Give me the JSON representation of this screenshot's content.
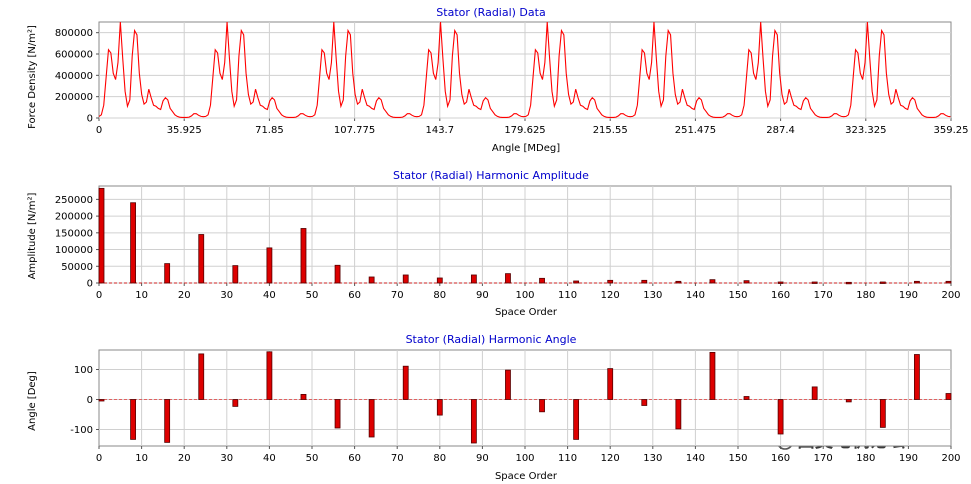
{
  "chart_data": [
    {
      "type": "line",
      "title": "Stator (Radial) Data",
      "xlabel": "Angle [MDeg]",
      "ylabel": "Force Density [N/m²]",
      "xlim": [
        0,
        359.25
      ],
      "ylim": [
        0,
        900000
      ],
      "xticks": [
        "0",
        "35.925",
        "71.85",
        "107.775",
        "143.7",
        "179.625",
        "215.55",
        "251.475",
        "287.4",
        "323.325",
        "359.25"
      ],
      "yticks": [
        "0",
        "200000",
        "400000",
        "600000",
        "800000"
      ],
      "grid": true,
      "color": "#ff0000",
      "period_deg": 45,
      "period_profile": {
        "angle_offset": [
          0,
          1,
          2,
          3,
          4,
          5,
          6,
          7,
          8,
          9,
          10,
          11,
          12,
          13,
          14,
          15,
          16,
          17,
          18,
          19,
          20,
          21,
          22,
          23,
          24,
          25,
          26,
          27,
          28,
          29,
          30,
          31,
          32,
          33,
          34,
          35,
          36,
          37,
          38,
          39,
          40,
          41,
          42,
          43,
          44,
          45
        ],
        "value": [
          15000,
          30000,
          120000,
          380000,
          640000,
          610000,
          420000,
          360000,
          520000,
          900000,
          560000,
          250000,
          110000,
          170000,
          580000,
          820000,
          780000,
          420000,
          220000,
          130000,
          150000,
          270000,
          190000,
          120000,
          110000,
          90000,
          80000,
          160000,
          190000,
          170000,
          90000,
          60000,
          30000,
          15000,
          8000,
          5000,
          5000,
          5000,
          8000,
          20000,
          40000,
          40000,
          25000,
          15000,
          12000,
          15000
        ]
      }
    },
    {
      "type": "bar",
      "title": "Stator (Radial) Harmonic Amplitude",
      "xlabel": "Space Order",
      "ylabel": "Amplitude [N/m²]",
      "xlim": [
        0,
        200
      ],
      "ylim": [
        0,
        290000
      ],
      "xticks": [
        "0",
        "10",
        "20",
        "30",
        "40",
        "50",
        "60",
        "70",
        "80",
        "90",
        "100",
        "110",
        "120",
        "130",
        "140",
        "150",
        "160",
        "170",
        "180",
        "190",
        "200"
      ],
      "yticks": [
        "0",
        "50000",
        "100000",
        "150000",
        "200000",
        "250000"
      ],
      "grid": true,
      "color": "#dd0000",
      "categories": [
        0,
        8,
        16,
        24,
        32,
        40,
        48,
        56,
        64,
        72,
        80,
        88,
        96,
        104,
        112,
        120,
        128,
        136,
        144,
        152,
        160,
        168,
        176,
        184,
        192,
        200
      ],
      "values": [
        283000,
        240000,
        58000,
        145000,
        52000,
        105000,
        163000,
        53000,
        18000,
        24000,
        15000,
        24000,
        28000,
        14000,
        6000,
        8000,
        8000,
        5000,
        10000,
        7000,
        3000,
        3000,
        2000,
        3000,
        5000,
        5000
      ]
    },
    {
      "type": "bar",
      "title": "Stator (Radial) Harmonic Angle",
      "xlabel": "Space Order",
      "ylabel": "Angle [Deg]",
      "xlim": [
        0,
        200
      ],
      "ylim": [
        -155,
        165
      ],
      "xticks": [
        "0",
        "10",
        "20",
        "30",
        "40",
        "50",
        "60",
        "70",
        "80",
        "90",
        "100",
        "110",
        "120",
        "130",
        "140",
        "150",
        "160",
        "170",
        "180",
        "190",
        "200"
      ],
      "yticks": [
        "-100",
        "0",
        "100"
      ],
      "grid": true,
      "color": "#dd0000",
      "categories": [
        0,
        8,
        16,
        24,
        32,
        40,
        48,
        56,
        64,
        72,
        80,
        88,
        96,
        104,
        112,
        120,
        128,
        136,
        144,
        152,
        160,
        168,
        176,
        184,
        192,
        200
      ],
      "values": [
        0,
        -133,
        -143,
        152,
        -23,
        159,
        17,
        -95,
        -125,
        111,
        -52,
        -145,
        98,
        -41,
        -133,
        103,
        -20,
        -98,
        157,
        10,
        -115,
        42,
        -8,
        -93,
        150,
        20
      ]
    }
  ],
  "watermark": {
    "text": "西莫电机论坛",
    "icon": "wechat-icon"
  }
}
